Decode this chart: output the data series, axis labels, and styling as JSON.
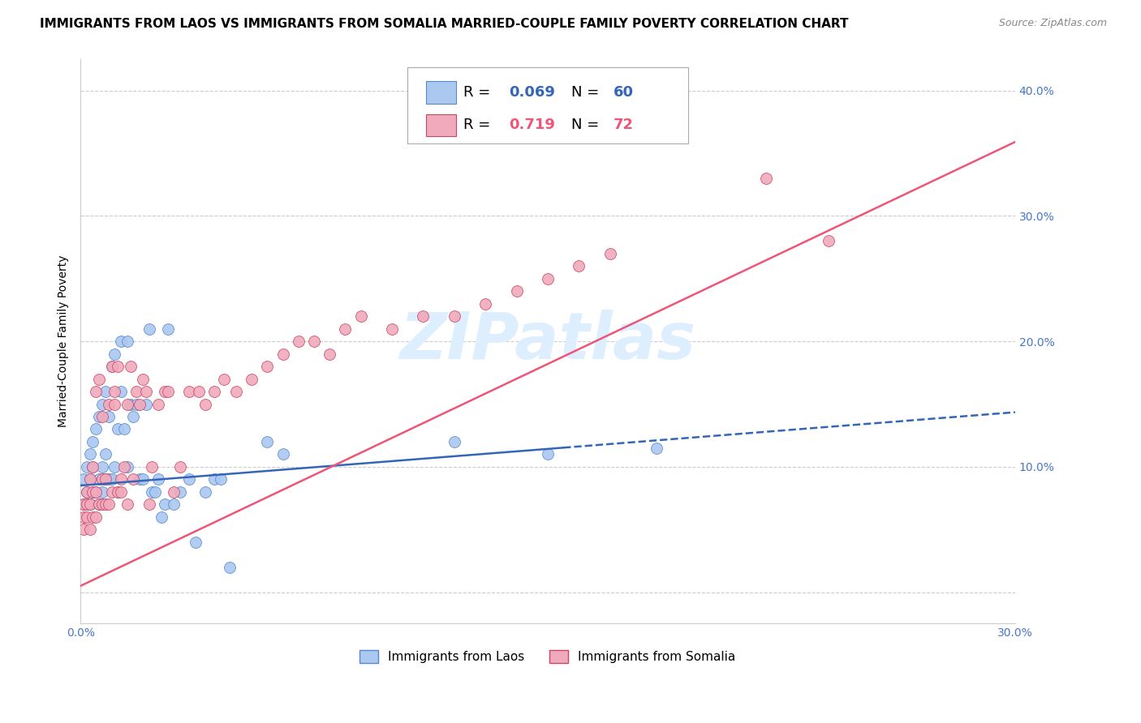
{
  "title": "IMMIGRANTS FROM LAOS VS IMMIGRANTS FROM SOMALIA MARRIED-COUPLE FAMILY POVERTY CORRELATION CHART",
  "source": "Source: ZipAtlas.com",
  "ylabel": "Married-Couple Family Poverty",
  "xlim": [
    0.0,
    0.3
  ],
  "ylim": [
    -0.025,
    0.425
  ],
  "xticks": [
    0.0,
    0.05,
    0.1,
    0.15,
    0.2,
    0.25,
    0.3
  ],
  "xtick_labels": [
    "0.0%",
    "",
    "",
    "",
    "",
    "",
    "30.0%"
  ],
  "yticks": [
    0.0,
    0.1,
    0.2,
    0.3,
    0.4
  ],
  "ytick_labels": [
    "",
    "10.0%",
    "20.0%",
    "30.0%",
    "40.0%"
  ],
  "watermark": "ZIPatlas",
  "series": [
    {
      "name": "Immigrants from Laos",
      "color": "#aac8f0",
      "edge_color": "#5588cc",
      "R": 0.069,
      "N": 60,
      "line_color": "#3366bb",
      "line_solid_end": 0.155,
      "intercept": 0.085,
      "slope": 0.195,
      "x": [
        0.001,
        0.001,
        0.002,
        0.002,
        0.003,
        0.003,
        0.003,
        0.004,
        0.004,
        0.004,
        0.005,
        0.005,
        0.006,
        0.006,
        0.006,
        0.007,
        0.007,
        0.007,
        0.008,
        0.008,
        0.008,
        0.009,
        0.009,
        0.01,
        0.01,
        0.011,
        0.011,
        0.012,
        0.012,
        0.013,
        0.013,
        0.014,
        0.015,
        0.015,
        0.016,
        0.017,
        0.018,
        0.019,
        0.02,
        0.021,
        0.022,
        0.023,
        0.024,
        0.025,
        0.026,
        0.027,
        0.028,
        0.03,
        0.032,
        0.035,
        0.037,
        0.04,
        0.043,
        0.045,
        0.048,
        0.06,
        0.065,
        0.12,
        0.15,
        0.185
      ],
      "y": [
        0.07,
        0.09,
        0.08,
        0.1,
        0.07,
        0.09,
        0.11,
        0.08,
        0.1,
        0.12,
        0.08,
        0.13,
        0.07,
        0.09,
        0.14,
        0.08,
        0.1,
        0.15,
        0.09,
        0.11,
        0.16,
        0.09,
        0.14,
        0.09,
        0.18,
        0.1,
        0.19,
        0.08,
        0.13,
        0.16,
        0.2,
        0.13,
        0.1,
        0.2,
        0.15,
        0.14,
        0.15,
        0.09,
        0.09,
        0.15,
        0.21,
        0.08,
        0.08,
        0.09,
        0.06,
        0.07,
        0.21,
        0.07,
        0.08,
        0.09,
        0.04,
        0.08,
        0.09,
        0.09,
        0.02,
        0.12,
        0.11,
        0.12,
        0.11,
        0.115
      ]
    },
    {
      "name": "Immigrants from Somalia",
      "color": "#f0aabb",
      "edge_color": "#cc4466",
      "R": 0.719,
      "N": 72,
      "line_color": "#ee5577",
      "line_solid_end": 0.3,
      "intercept": 0.005,
      "slope": 1.18,
      "x": [
        0.001,
        0.001,
        0.001,
        0.002,
        0.002,
        0.002,
        0.003,
        0.003,
        0.003,
        0.004,
        0.004,
        0.004,
        0.005,
        0.005,
        0.005,
        0.006,
        0.006,
        0.007,
        0.007,
        0.007,
        0.008,
        0.008,
        0.009,
        0.009,
        0.01,
        0.01,
        0.011,
        0.011,
        0.012,
        0.012,
        0.013,
        0.013,
        0.014,
        0.015,
        0.015,
        0.016,
        0.017,
        0.018,
        0.019,
        0.02,
        0.021,
        0.022,
        0.023,
        0.025,
        0.027,
        0.028,
        0.03,
        0.032,
        0.035,
        0.038,
        0.04,
        0.043,
        0.046,
        0.05,
        0.055,
        0.06,
        0.065,
        0.07,
        0.075,
        0.08,
        0.085,
        0.09,
        0.1,
        0.11,
        0.12,
        0.13,
        0.14,
        0.15,
        0.16,
        0.17,
        0.22,
        0.24
      ],
      "y": [
        0.05,
        0.06,
        0.07,
        0.06,
        0.07,
        0.08,
        0.05,
        0.07,
        0.09,
        0.06,
        0.08,
        0.1,
        0.06,
        0.08,
        0.16,
        0.07,
        0.17,
        0.07,
        0.09,
        0.14,
        0.07,
        0.09,
        0.07,
        0.15,
        0.08,
        0.18,
        0.15,
        0.16,
        0.08,
        0.18,
        0.08,
        0.09,
        0.1,
        0.07,
        0.15,
        0.18,
        0.09,
        0.16,
        0.15,
        0.17,
        0.16,
        0.07,
        0.1,
        0.15,
        0.16,
        0.16,
        0.08,
        0.1,
        0.16,
        0.16,
        0.15,
        0.16,
        0.17,
        0.16,
        0.17,
        0.18,
        0.19,
        0.2,
        0.2,
        0.19,
        0.21,
        0.22,
        0.21,
        0.22,
        0.22,
        0.23,
        0.24,
        0.25,
        0.26,
        0.27,
        0.33,
        0.28
      ]
    }
  ],
  "background_color": "#ffffff",
  "grid_color": "#cccccc",
  "title_fontsize": 11,
  "axis_label_fontsize": 10,
  "tick_label_color": "#4477cc",
  "tick_label_fontsize": 10,
  "legend_fontsize": 13,
  "watermark_color": "#ddeeff",
  "watermark_fontsize": 58,
  "source_fontsize": 9
}
